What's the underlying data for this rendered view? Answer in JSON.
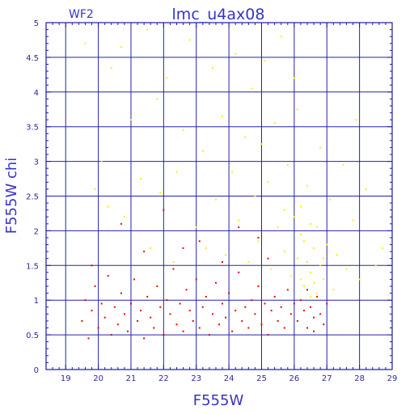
{
  "chart_data": {
    "type": "scatter",
    "title": "lmc_u4ax08",
    "subtitle": "WF2",
    "xlabel": "F555W",
    "ylabel": "F555W chi",
    "xlim": [
      18.4,
      29
    ],
    "ylim": [
      0,
      5
    ],
    "x_ticks": [
      "19",
      "20",
      "21",
      "22",
      "23",
      "24",
      "25",
      "26",
      "27",
      "28",
      "29"
    ],
    "y_ticks": [
      "0",
      "0.5",
      "1",
      "1.5",
      "2",
      "2.5",
      "3",
      "3.5",
      "4",
      "4.5",
      "5"
    ],
    "grid": true,
    "colors": {
      "frame": "#1a1aa8",
      "grid": "#2323a8",
      "series_red": "#ee0000",
      "series_yellow": "#ffee00",
      "text": "#3535c8"
    },
    "series": [
      {
        "color": "#ffee00",
        "points": [
          [
            19.6,
            4.7
          ],
          [
            19.9,
            2.6
          ],
          [
            20.1,
            3.0
          ],
          [
            20.3,
            2.35
          ],
          [
            20.7,
            4.65
          ],
          [
            20.8,
            2.2
          ],
          [
            21.0,
            3.6
          ],
          [
            21.3,
            2.75
          ],
          [
            21.5,
            4.9
          ],
          [
            21.6,
            1.75
          ],
          [
            21.8,
            3.9
          ],
          [
            21.9,
            2.55
          ],
          [
            22.1,
            4.2
          ],
          [
            22.3,
            1.55
          ],
          [
            22.6,
            3.45
          ],
          [
            22.8,
            4.75
          ],
          [
            23.0,
            2.05
          ],
          [
            23.2,
            3.15
          ],
          [
            23.3,
            1.75
          ],
          [
            23.5,
            4.35
          ],
          [
            23.6,
            2.45
          ],
          [
            23.8,
            3.65
          ],
          [
            23.9,
            1.65
          ],
          [
            24.1,
            2.85
          ],
          [
            24.2,
            4.55
          ],
          [
            24.3,
            2.15
          ],
          [
            24.5,
            3.35
          ],
          [
            24.6,
            1.55
          ],
          [
            24.7,
            4.05
          ],
          [
            24.8,
            2.5
          ],
          [
            24.9,
            1.85
          ],
          [
            25.0,
            3.25
          ],
          [
            25.1,
            4.45
          ],
          [
            25.2,
            2.7
          ],
          [
            25.3,
            1.45
          ],
          [
            25.4,
            3.55
          ],
          [
            25.5,
            2.05
          ],
          [
            25.6,
            4.8
          ],
          [
            25.7,
            1.7
          ],
          [
            25.8,
            2.95
          ],
          [
            25.9,
            1.35
          ],
          [
            26.0,
            2.2
          ],
          [
            26.1,
            1.6
          ],
          [
            26.1,
            3.75
          ],
          [
            26.2,
            1.3
          ],
          [
            26.2,
            2.35
          ],
          [
            26.3,
            1.85
          ],
          [
            26.3,
            1.2
          ],
          [
            26.4,
            1.55
          ],
          [
            26.4,
            2.65
          ],
          [
            26.5,
            1.4
          ],
          [
            26.5,
            1.05
          ],
          [
            26.6,
            1.75
          ],
          [
            26.6,
            1.25
          ],
          [
            26.7,
            2.05
          ],
          [
            26.7,
            1.1
          ],
          [
            26.8,
            1.5
          ],
          [
            26.9,
            1.3
          ],
          [
            27.0,
            1.8
          ],
          [
            27.1,
            2.45
          ],
          [
            27.2,
            1.15
          ],
          [
            27.3,
            1.65
          ],
          [
            27.5,
            2.95
          ],
          [
            27.6,
            1.45
          ],
          [
            27.8,
            2.15
          ],
          [
            28.0,
            1.3
          ],
          [
            28.2,
            2.6
          ],
          [
            28.5,
            1.5
          ],
          [
            28.7,
            1.75
          ],
          [
            26.0,
            4.2
          ],
          [
            26.8,
            3.2
          ],
          [
            27.9,
            3.6
          ],
          [
            22.4,
            2.85
          ],
          [
            20.4,
            4.35
          ],
          [
            25.7,
            2.3
          ],
          [
            26.2,
            1.95
          ],
          [
            26.5,
            2.1
          ],
          [
            26.9,
            1.6
          ]
        ]
      },
      {
        "color": "#ee0000",
        "points": [
          [
            19.5,
            0.7
          ],
          [
            19.6,
            1.0
          ],
          [
            19.7,
            0.45
          ],
          [
            19.8,
            0.85
          ],
          [
            19.9,
            1.2
          ],
          [
            20.0,
            0.6
          ],
          [
            20.1,
            0.95
          ],
          [
            20.2,
            0.75
          ],
          [
            20.3,
            1.35
          ],
          [
            20.4,
            0.5
          ],
          [
            20.5,
            0.9
          ],
          [
            20.6,
            0.65
          ],
          [
            20.7,
            1.1
          ],
          [
            20.8,
            0.8
          ],
          [
            20.9,
            0.55
          ],
          [
            21.0,
            0.95
          ],
          [
            21.1,
            1.3
          ],
          [
            21.2,
            0.7
          ],
          [
            21.3,
            0.85
          ],
          [
            21.4,
            0.45
          ],
          [
            21.5,
            1.05
          ],
          [
            21.6,
            0.75
          ],
          [
            21.7,
            0.6
          ],
          [
            21.8,
            1.2
          ],
          [
            21.9,
            0.9
          ],
          [
            22.0,
            0.5
          ],
          [
            22.1,
            1.0
          ],
          [
            22.2,
            0.8
          ],
          [
            22.3,
            1.45
          ],
          [
            22.4,
            0.65
          ],
          [
            22.5,
            0.95
          ],
          [
            22.6,
            0.55
          ],
          [
            22.7,
            1.15
          ],
          [
            22.8,
            0.85
          ],
          [
            22.9,
            0.7
          ],
          [
            23.0,
            1.3
          ],
          [
            23.1,
            0.6
          ],
          [
            23.2,
            0.9
          ],
          [
            23.3,
            1.05
          ],
          [
            23.4,
            0.5
          ],
          [
            23.5,
            0.8
          ],
          [
            23.6,
            1.25
          ],
          [
            23.7,
            0.65
          ],
          [
            23.8,
            0.95
          ],
          [
            23.9,
            0.75
          ],
          [
            24.0,
            1.1
          ],
          [
            24.1,
            0.55
          ],
          [
            24.2,
            0.85
          ],
          [
            24.3,
            1.4
          ],
          [
            24.4,
            0.7
          ],
          [
            24.5,
            0.9
          ],
          [
            24.6,
            0.6
          ],
          [
            24.7,
            1.0
          ],
          [
            24.8,
            0.8
          ],
          [
            24.9,
            1.2
          ],
          [
            25.0,
            0.65
          ],
          [
            25.1,
            0.95
          ],
          [
            25.2,
            0.5
          ],
          [
            25.3,
            0.85
          ],
          [
            25.4,
            1.05
          ],
          [
            25.5,
            0.7
          ],
          [
            25.6,
            0.9
          ],
          [
            25.7,
            0.6
          ],
          [
            25.8,
            1.15
          ],
          [
            25.9,
            0.8
          ],
          [
            26.0,
            0.95
          ],
          [
            26.1,
            0.7
          ],
          [
            26.2,
            1.0
          ],
          [
            26.3,
            0.85
          ],
          [
            26.4,
            0.6
          ],
          [
            26.5,
            0.9
          ],
          [
            26.6,
            0.75
          ],
          [
            26.7,
            1.05
          ],
          [
            26.8,
            0.8
          ],
          [
            26.9,
            0.65
          ],
          [
            27.0,
            0.95
          ],
          [
            26.4,
            1.15
          ],
          [
            26.6,
            0.55
          ],
          [
            22.0,
            2.3
          ],
          [
            23.1,
            1.85
          ],
          [
            24.3,
            2.05
          ],
          [
            21.4,
            1.7
          ],
          [
            25.2,
            1.6
          ],
          [
            20.7,
            2.1
          ],
          [
            23.8,
            1.55
          ],
          [
            22.6,
            1.75
          ],
          [
            24.9,
            1.9
          ],
          [
            19.8,
            1.5
          ]
        ]
      }
    ]
  }
}
